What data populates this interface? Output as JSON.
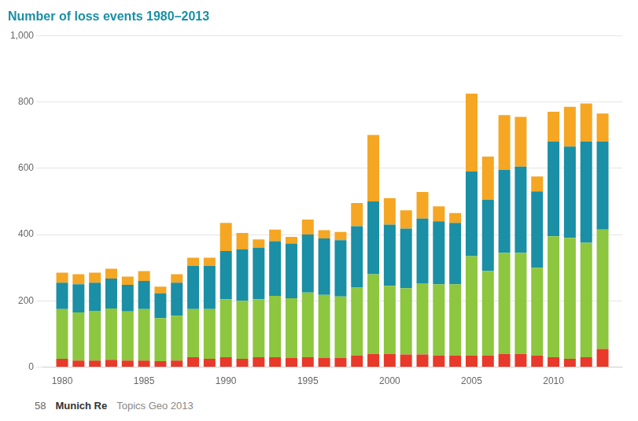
{
  "chart_data": {
    "type": "bar",
    "title": "Number of loss events 1980–2013",
    "x": [
      1980,
      1981,
      1982,
      1983,
      1984,
      1985,
      1986,
      1987,
      1988,
      1989,
      1990,
      1991,
      1992,
      1993,
      1994,
      1995,
      1996,
      1997,
      1998,
      1999,
      2000,
      2001,
      2002,
      2003,
      2004,
      2005,
      2006,
      2007,
      2008,
      2009,
      2010,
      2011,
      2012,
      2013
    ],
    "series": [
      {
        "color": "#e8392a",
        "values": [
          25,
          20,
          20,
          22,
          20,
          20,
          18,
          20,
          30,
          25,
          30,
          25,
          30,
          30,
          28,
          30,
          28,
          28,
          35,
          40,
          40,
          38,
          38,
          35,
          35,
          35,
          35,
          40,
          40,
          35,
          30,
          25,
          30,
          55
        ]
      },
      {
        "color": "#8dc63f",
        "values": [
          150,
          145,
          150,
          155,
          148,
          155,
          130,
          135,
          145,
          150,
          175,
          175,
          175,
          185,
          180,
          195,
          190,
          185,
          205,
          240,
          205,
          200,
          215,
          215,
          215,
          300,
          255,
          305,
          305,
          265,
          365,
          365,
          345,
          360
        ]
      },
      {
        "color": "#1a8fa5",
        "values": [
          80,
          85,
          85,
          90,
          80,
          85,
          75,
          100,
          130,
          130,
          145,
          155,
          155,
          165,
          165,
          175,
          170,
          170,
          185,
          220,
          185,
          180,
          195,
          190,
          185,
          255,
          215,
          250,
          260,
          230,
          285,
          275,
          305,
          265
        ]
      },
      {
        "color": "#f5a623",
        "values": [
          30,
          30,
          30,
          30,
          25,
          30,
          20,
          25,
          25,
          25,
          85,
          50,
          25,
          35,
          20,
          45,
          25,
          25,
          70,
          200,
          80,
          55,
          80,
          45,
          30,
          235,
          130,
          165,
          150,
          45,
          90,
          120,
          115,
          85
        ]
      }
    ],
    "stacked": true,
    "xlim": [
      1978.8,
      2014.2
    ],
    "xticks": [
      1980,
      1985,
      1990,
      1995,
      2000,
      2005,
      2010
    ],
    "ylim": [
      0,
      1000
    ],
    "yticks": [
      0,
      200,
      400,
      600,
      800,
      {
        "value": 1000,
        "label": "1,000"
      }
    ],
    "grid": true,
    "annotations": [
      "58",
      "Munich Re",
      "Topics Geo 2013"
    ]
  }
}
